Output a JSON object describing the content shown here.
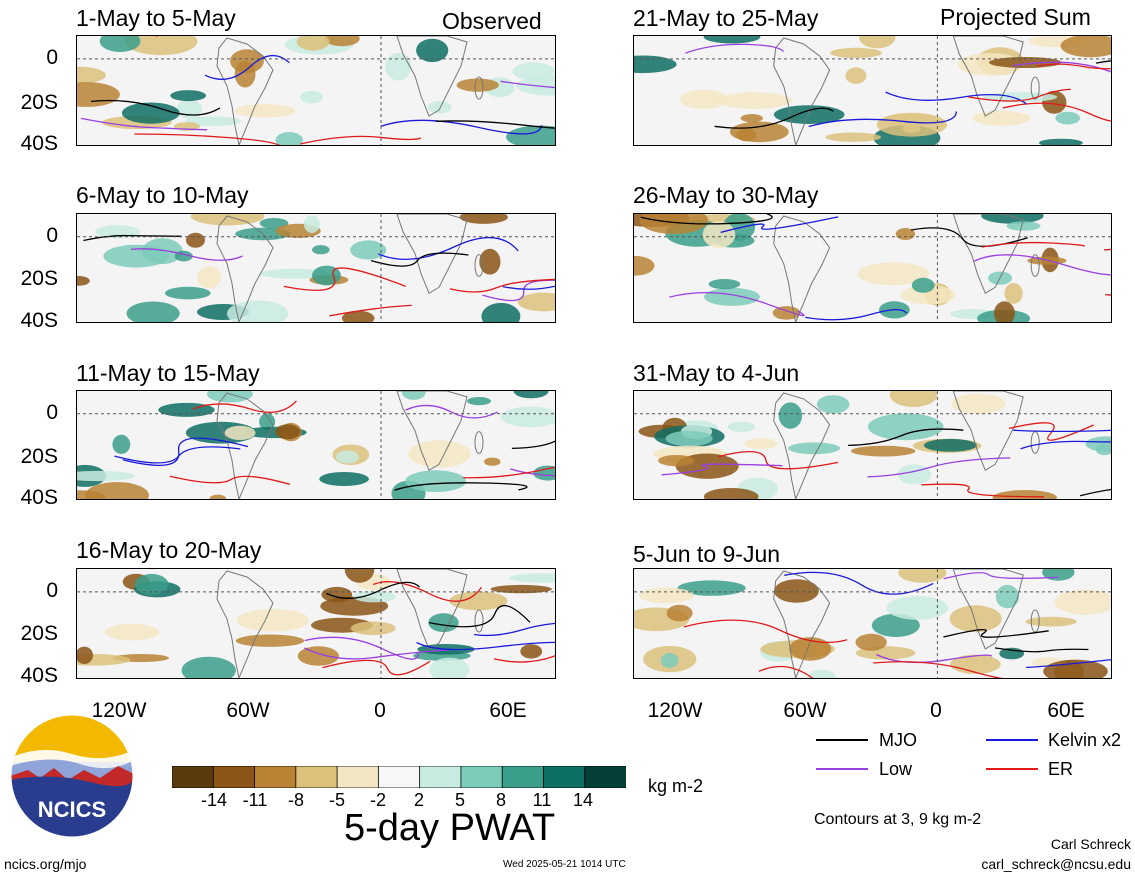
{
  "headers": {
    "observed": "Observed",
    "projected": "Projected Sum"
  },
  "panels": [
    {
      "title": "1-May to 5-May"
    },
    {
      "title": "6-May to 10-May"
    },
    {
      "title": "11-May to 15-May"
    },
    {
      "title": "16-May to 20-May"
    },
    {
      "title": "21-May to 25-May"
    },
    {
      "title": "26-May to 30-May"
    },
    {
      "title": "31-May to 4-Jun"
    },
    {
      "title": "5-Jun to 9-Jun"
    }
  ],
  "y_ticks": [
    "0",
    "20S",
    "40S"
  ],
  "x_ticks": [
    "120W",
    "60W",
    "0",
    "60E"
  ],
  "colorbar": {
    "labels": [
      "-14",
      "-11",
      "-8",
      "-5",
      "-2",
      "2",
      "5",
      "8",
      "11",
      "14"
    ],
    "colors": [
      "#5c3a0f",
      "#8a5516",
      "#b98334",
      "#dcc17b",
      "#f3e6c2",
      "#f7f7f7",
      "#c8ebe1",
      "#7ccbbb",
      "#3a9e8b",
      "#0e6f63",
      "#063f38"
    ],
    "units": "kg m-2"
  },
  "title_main": "5-day PWAT",
  "legend": {
    "items": [
      {
        "label": "MJO",
        "color": "#000000"
      },
      {
        "label": "Kelvin x2",
        "color": "#1a1adc"
      },
      {
        "label": "Low",
        "color": "#9a3fe0"
      },
      {
        "label": "ER",
        "color": "#e01a1a"
      }
    ],
    "note": "Contours at 3, 9 kg m-2"
  },
  "logo": {
    "text": "NCICS"
  },
  "footer": {
    "left": "ncics.org/mjo",
    "center": "Wed 2025-05-21 1014 UTC",
    "author": "Carl Schreck",
    "email": "carl_schreck@ncsu.edu"
  }
}
